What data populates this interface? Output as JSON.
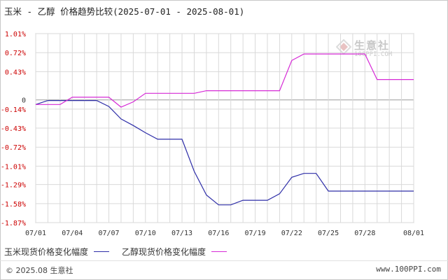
{
  "header": {
    "title": "玉米 - 乙醇 价格趋势比较(2025-07-01 - 2025-08-01)"
  },
  "watermark": {
    "text": "生意社",
    "url": "100PPI.COM"
  },
  "footer": {
    "copyright": "© 2025.08 生意社",
    "site": "www.100PPI.com"
  },
  "colors": {
    "corn": "#2e2ea8",
    "ethanol": "#d62ad6",
    "axis_label": "#cc0000",
    "grid": "#d9d9d9"
  },
  "chart_data": {
    "type": "line",
    "x": [
      "07/01",
      "07/02",
      "07/03",
      "07/04",
      "07/05",
      "07/06",
      "07/07",
      "07/08",
      "07/09",
      "07/10",
      "07/11",
      "07/12",
      "07/13",
      "07/14",
      "07/15",
      "07/16",
      "07/17",
      "07/18",
      "07/19",
      "07/20",
      "07/21",
      "07/22",
      "07/23",
      "07/24",
      "07/25",
      "07/26",
      "07/27",
      "07/28",
      "07/29",
      "07/30",
      "07/31",
      "08/01"
    ],
    "x_tick_labels": [
      "07/01",
      "07/04",
      "07/07",
      "07/10",
      "07/13",
      "07/16",
      "07/19",
      "07/22",
      "07/25",
      "07/28",
      "08/01"
    ],
    "y_tick_labels": [
      "1.01%",
      "0.72%",
      "0.43%",
      "0",
      "-0.14%",
      "-0.43%",
      "-0.72%",
      "-1.01%",
      "-1.29%",
      "-1.58%",
      "-1.87%"
    ],
    "y_tick_values": [
      1.01,
      0.72,
      0.43,
      0.0,
      -0.14,
      -0.43,
      -0.72,
      -1.01,
      -1.29,
      -1.58,
      -1.87
    ],
    "ylim": [
      -1.87,
      1.01
    ],
    "grid": true,
    "legend_position": "bottom-left",
    "series": [
      {
        "name": "玉米现货价格变化幅度",
        "values": [
          -0.07,
          -0.01,
          -0.01,
          -0.01,
          -0.01,
          -0.01,
          -0.1,
          -0.29,
          -0.39,
          -0.5,
          -0.6,
          -0.6,
          -0.6,
          -1.09,
          -1.45,
          -1.6,
          -1.6,
          -1.53,
          -1.53,
          -1.53,
          -1.43,
          -1.18,
          -1.12,
          -1.12,
          -1.39,
          -1.39,
          -1.39,
          -1.39,
          -1.39,
          -1.39,
          -1.39,
          -1.39
        ]
      },
      {
        "name": "乙醇现货价格变化幅度",
        "values": [
          -0.07,
          -0.07,
          -0.07,
          0.04,
          0.04,
          0.04,
          0.04,
          -0.11,
          -0.03,
          0.1,
          0.1,
          0.1,
          0.1,
          0.1,
          0.14,
          0.14,
          0.14,
          0.14,
          0.14,
          0.14,
          0.14,
          0.6,
          0.7,
          0.7,
          0.7,
          0.7,
          0.7,
          0.7,
          0.31,
          0.31,
          0.31,
          0.31
        ]
      }
    ]
  }
}
